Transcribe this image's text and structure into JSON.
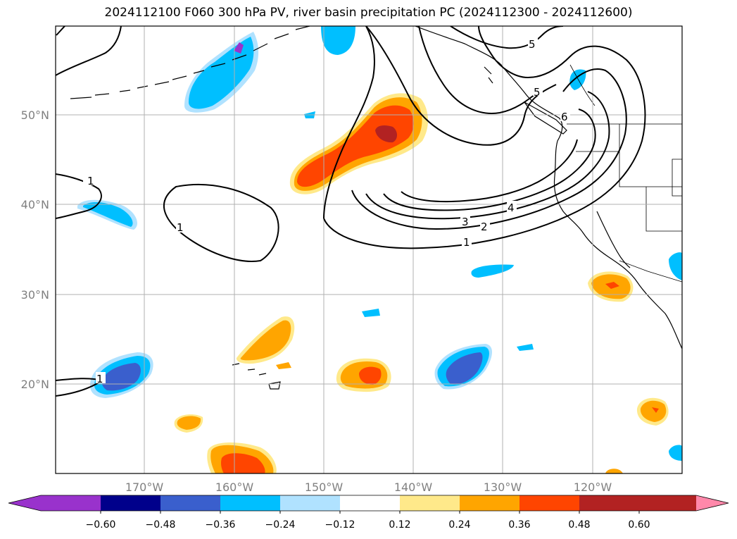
{
  "title": "2024112100 F060 300 hPa PV, river basin precipitation PC (2024112300 - 2024112600)",
  "axes": {
    "lon_labels": [
      "170°W",
      "160°W",
      "150°W",
      "140°W",
      "130°W",
      "120°W"
    ],
    "lat_labels": [
      "50°N",
      "40°N",
      "30°N",
      "20°N"
    ]
  },
  "colorbar": {
    "tick_labels": [
      "−0.60",
      "−0.48",
      "−0.36",
      "−0.24",
      "−0.12",
      "0.12",
      "0.24",
      "0.36",
      "0.48",
      "0.60"
    ],
    "bins": [
      {
        "color": "#9932cc"
      },
      {
        "color": "#00008b"
      },
      {
        "color": "#3a5fcd"
      },
      {
        "color": "#00bfff"
      },
      {
        "color": "#b0e2ff"
      },
      {
        "color": "#ffffff"
      },
      {
        "color": "#ffe98a"
      },
      {
        "color": "#ffa500"
      },
      {
        "color": "#ff4500"
      },
      {
        "color": "#b22222"
      },
      {
        "color": "#ff88aa"
      }
    ]
  },
  "contour_labels": [
    "1",
    "1",
    "1",
    "1",
    "2",
    "3",
    "4",
    "5",
    "5",
    "6"
  ],
  "colors": {
    "neg_light": "#b0e2ff",
    "neg_mid": "#00bfff",
    "neg_strong": "#3a5fcd",
    "neg_max": "#9932cc",
    "pos_light": "#ffe98a",
    "pos_mid": "#ffa500",
    "pos_strong": "#ff4500",
    "pos_max": "#b22222"
  }
}
